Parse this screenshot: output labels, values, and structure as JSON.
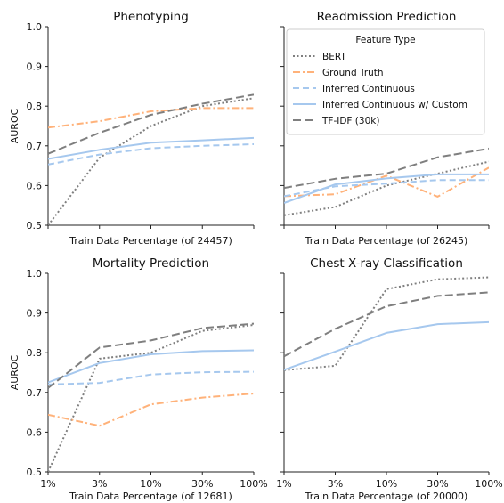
{
  "chart_data": [
    {
      "type": "line",
      "title": "Phenotyping",
      "xlabel": "Train Data Percentage (of 24457)",
      "ylabel": "AUROC",
      "x": [
        "1%",
        "3%",
        "10%",
        "30%",
        "100%"
      ],
      "xticks_labeled": false,
      "yticks_labeled": true,
      "ylim": [
        0.5,
        1.0
      ],
      "yticks": [
        "0.5",
        "0.6",
        "0.7",
        "0.8",
        "0.9",
        "1.0"
      ],
      "series": [
        {
          "name": "BERT",
          "values": [
            0.5,
            0.67,
            0.75,
            0.8,
            0.82
          ]
        },
        {
          "name": "Ground Truth",
          "values": [
            0.746,
            0.762,
            0.787,
            0.795,
            0.795
          ]
        },
        {
          "name": "Inferred Continuous",
          "values": [
            0.653,
            0.678,
            0.694,
            0.7,
            0.704
          ]
        },
        {
          "name": "Inferred Continuous w/ Custom",
          "values": [
            0.667,
            0.69,
            0.708,
            0.714,
            0.72
          ]
        },
        {
          "name": "TF-IDF (30k)",
          "values": [
            0.68,
            0.733,
            0.778,
            0.806,
            0.829
          ]
        }
      ]
    },
    {
      "type": "line",
      "title": "Readmission Prediction",
      "xlabel": "Train Data Percentage (of 26245)",
      "ylabel": "",
      "x": [
        "1%",
        "3%",
        "10%",
        "30%",
        "100%"
      ],
      "xticks_labeled": false,
      "yticks_labeled": false,
      "ylim": [
        0.5,
        1.0
      ],
      "legend": {
        "title": "Feature Type",
        "placement": "top",
        "entries": [
          "BERT",
          "Ground Truth",
          "Inferred Continuous",
          "Inferred Continuous w/ Custom",
          "TF-IDF (30k)"
        ]
      },
      "series": [
        {
          "name": "BERT",
          "values": [
            0.525,
            0.546,
            0.6,
            0.63,
            0.66
          ]
        },
        {
          "name": "Ground Truth",
          "values": [
            0.573,
            0.578,
            0.625,
            0.572,
            0.645
          ]
        },
        {
          "name": "Inferred Continuous",
          "values": [
            0.573,
            0.598,
            0.605,
            0.614,
            0.614
          ]
        },
        {
          "name": "Inferred Continuous w/ Custom",
          "values": [
            0.556,
            0.603,
            0.618,
            0.628,
            0.628
          ]
        },
        {
          "name": "TF-IDF (30k)",
          "values": [
            0.594,
            0.617,
            0.63,
            0.671,
            0.693
          ]
        }
      ]
    },
    {
      "type": "line",
      "title": "Mortality Prediction",
      "xlabel": "Train Data Percentage (of 12681)",
      "ylabel": "AUROC",
      "x": [
        "1%",
        "3%",
        "10%",
        "30%",
        "100%"
      ],
      "xticks_labeled": true,
      "yticks_labeled": true,
      "ylim": [
        0.5,
        1.0
      ],
      "yticks": [
        "0.5",
        "0.6",
        "0.7",
        "0.8",
        "0.9",
        "1.0"
      ],
      "series": [
        {
          "name": "BERT",
          "values": [
            0.5,
            0.785,
            0.8,
            0.855,
            0.87
          ]
        },
        {
          "name": "Ground Truth",
          "values": [
            0.644,
            0.616,
            0.67,
            0.687,
            0.697
          ]
        },
        {
          "name": "Inferred Continuous",
          "values": [
            0.72,
            0.724,
            0.745,
            0.751,
            0.752
          ]
        },
        {
          "name": "Inferred Continuous w/ Custom",
          "values": [
            0.725,
            0.774,
            0.796,
            0.804,
            0.806
          ]
        },
        {
          "name": "TF-IDF (30k)",
          "values": [
            0.711,
            0.813,
            0.831,
            0.862,
            0.873
          ]
        }
      ]
    },
    {
      "type": "line",
      "title": "Chest X-ray Classification",
      "xlabel": "Train Data Percentage (of 20000)",
      "ylabel": "",
      "x": [
        "1%",
        "3%",
        "10%",
        "30%",
        "100%"
      ],
      "xticks_labeled": true,
      "yticks_labeled": false,
      "ylim": [
        0.5,
        1.0
      ],
      "series": [
        {
          "name": "BERT",
          "values": [
            0.756,
            0.767,
            0.96,
            0.985,
            0.99
          ]
        },
        {
          "name": "Inferred Continuous w/ Custom",
          "values": [
            0.757,
            0.803,
            0.85,
            0.872,
            0.877
          ]
        },
        {
          "name": "TF-IDF (30k)",
          "values": [
            0.791,
            0.86,
            0.917,
            0.943,
            0.952
          ]
        }
      ]
    }
  ],
  "styles": {
    "BERT": {
      "color": "#7f7f7f",
      "dash": "2 2.5",
      "width": 2
    },
    "Ground Truth": {
      "color": "#ffb27a",
      "dash": "8 3 2 3",
      "width": 2
    },
    "Inferred Continuous": {
      "color": "#a6c8ee",
      "dash": "7 4",
      "width": 2
    },
    "Inferred Continuous w/ Custom": {
      "color": "#a6c8ee",
      "dash": "",
      "width": 2
    },
    "TF-IDF (30k)": {
      "color": "#7f7f7f",
      "dash": "9 4",
      "width": 2
    }
  }
}
